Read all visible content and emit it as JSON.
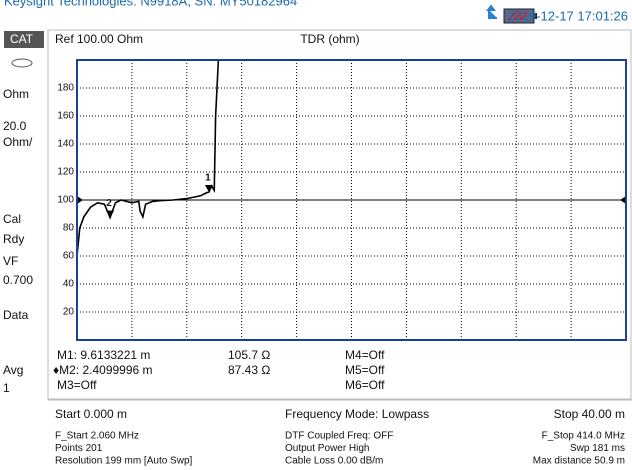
{
  "header": {
    "title": "Keysight Technologies: N9918A, SN: MY50182964",
    "datetime": "2019-12-17 17:01:26"
  },
  "sidebar": [
    "CAT",
    "Ohm",
    "20.0",
    "Ohm/",
    "Cal",
    "Rdy",
    "VF",
    "0.700",
    "Data",
    "Avg",
    "1"
  ],
  "chart_data": {
    "type": "line",
    "title": "TDR (ohm)",
    "reference": "Ref 100.00 Ohm",
    "reference_level": 100,
    "x": [
      0,
      0.2,
      0.5,
      1.0,
      1.5,
      2.0,
      2.4099996,
      2.8,
      3.2,
      3.6,
      4.0,
      4.5,
      4.6,
      4.8,
      5.0,
      5.5,
      6.0,
      7.0,
      8.0,
      9.0,
      9.4,
      9.6133221,
      9.8,
      10.0,
      10.1,
      10.3,
      40
    ],
    "series": [
      {
        "color": "#000000",
        "values": [
          60,
          80,
          88,
          95,
          98,
          97,
          87.43,
          98,
          100,
          99,
          98,
          99,
          92,
          88,
          97,
          99,
          99.5,
          100,
          101,
          103,
          105,
          105.7,
          110,
          107,
          160,
          200,
          200
        ]
      }
    ],
    "xlim": [
      0,
      40
    ],
    "ylim": [
      0,
      200
    ],
    "yticks": [
      20,
      40,
      60,
      80,
      100,
      120,
      140,
      160,
      180
    ],
    "grid": true,
    "markers": [
      {
        "label": "1",
        "x": 9.6133221,
        "y": 105.7
      },
      {
        "label": "2",
        "x": 2.4099996,
        "y": 87.43
      }
    ]
  },
  "marker_table": [
    [
      "M1: 9.6133221  m",
      "105.7 Ω",
      "M4=Off"
    ],
    [
      "♦M2: 2.4099996  m",
      "87.43 Ω",
      "M5=Off"
    ],
    [
      "M3=Off",
      "",
      "M6=Off"
    ]
  ],
  "footer": {
    "start": "Start 0.000 m",
    "mode": "Frequency Mode: Lowpass",
    "stop": "Stop 40.00 m",
    "left": [
      "F_Start 2.060 MHz",
      "Points 201",
      "Resolution 199 mm  [Auto Swp]"
    ],
    "middle": [
      "DTF Coupled Freq:  OFF",
      "Output Power High",
      "Cable Loss 0.00  dB/m"
    ],
    "right": [
      "F_Stop 414.0 MHz",
      "Swp 181 ms",
      "Max distance 50.9  m"
    ]
  }
}
